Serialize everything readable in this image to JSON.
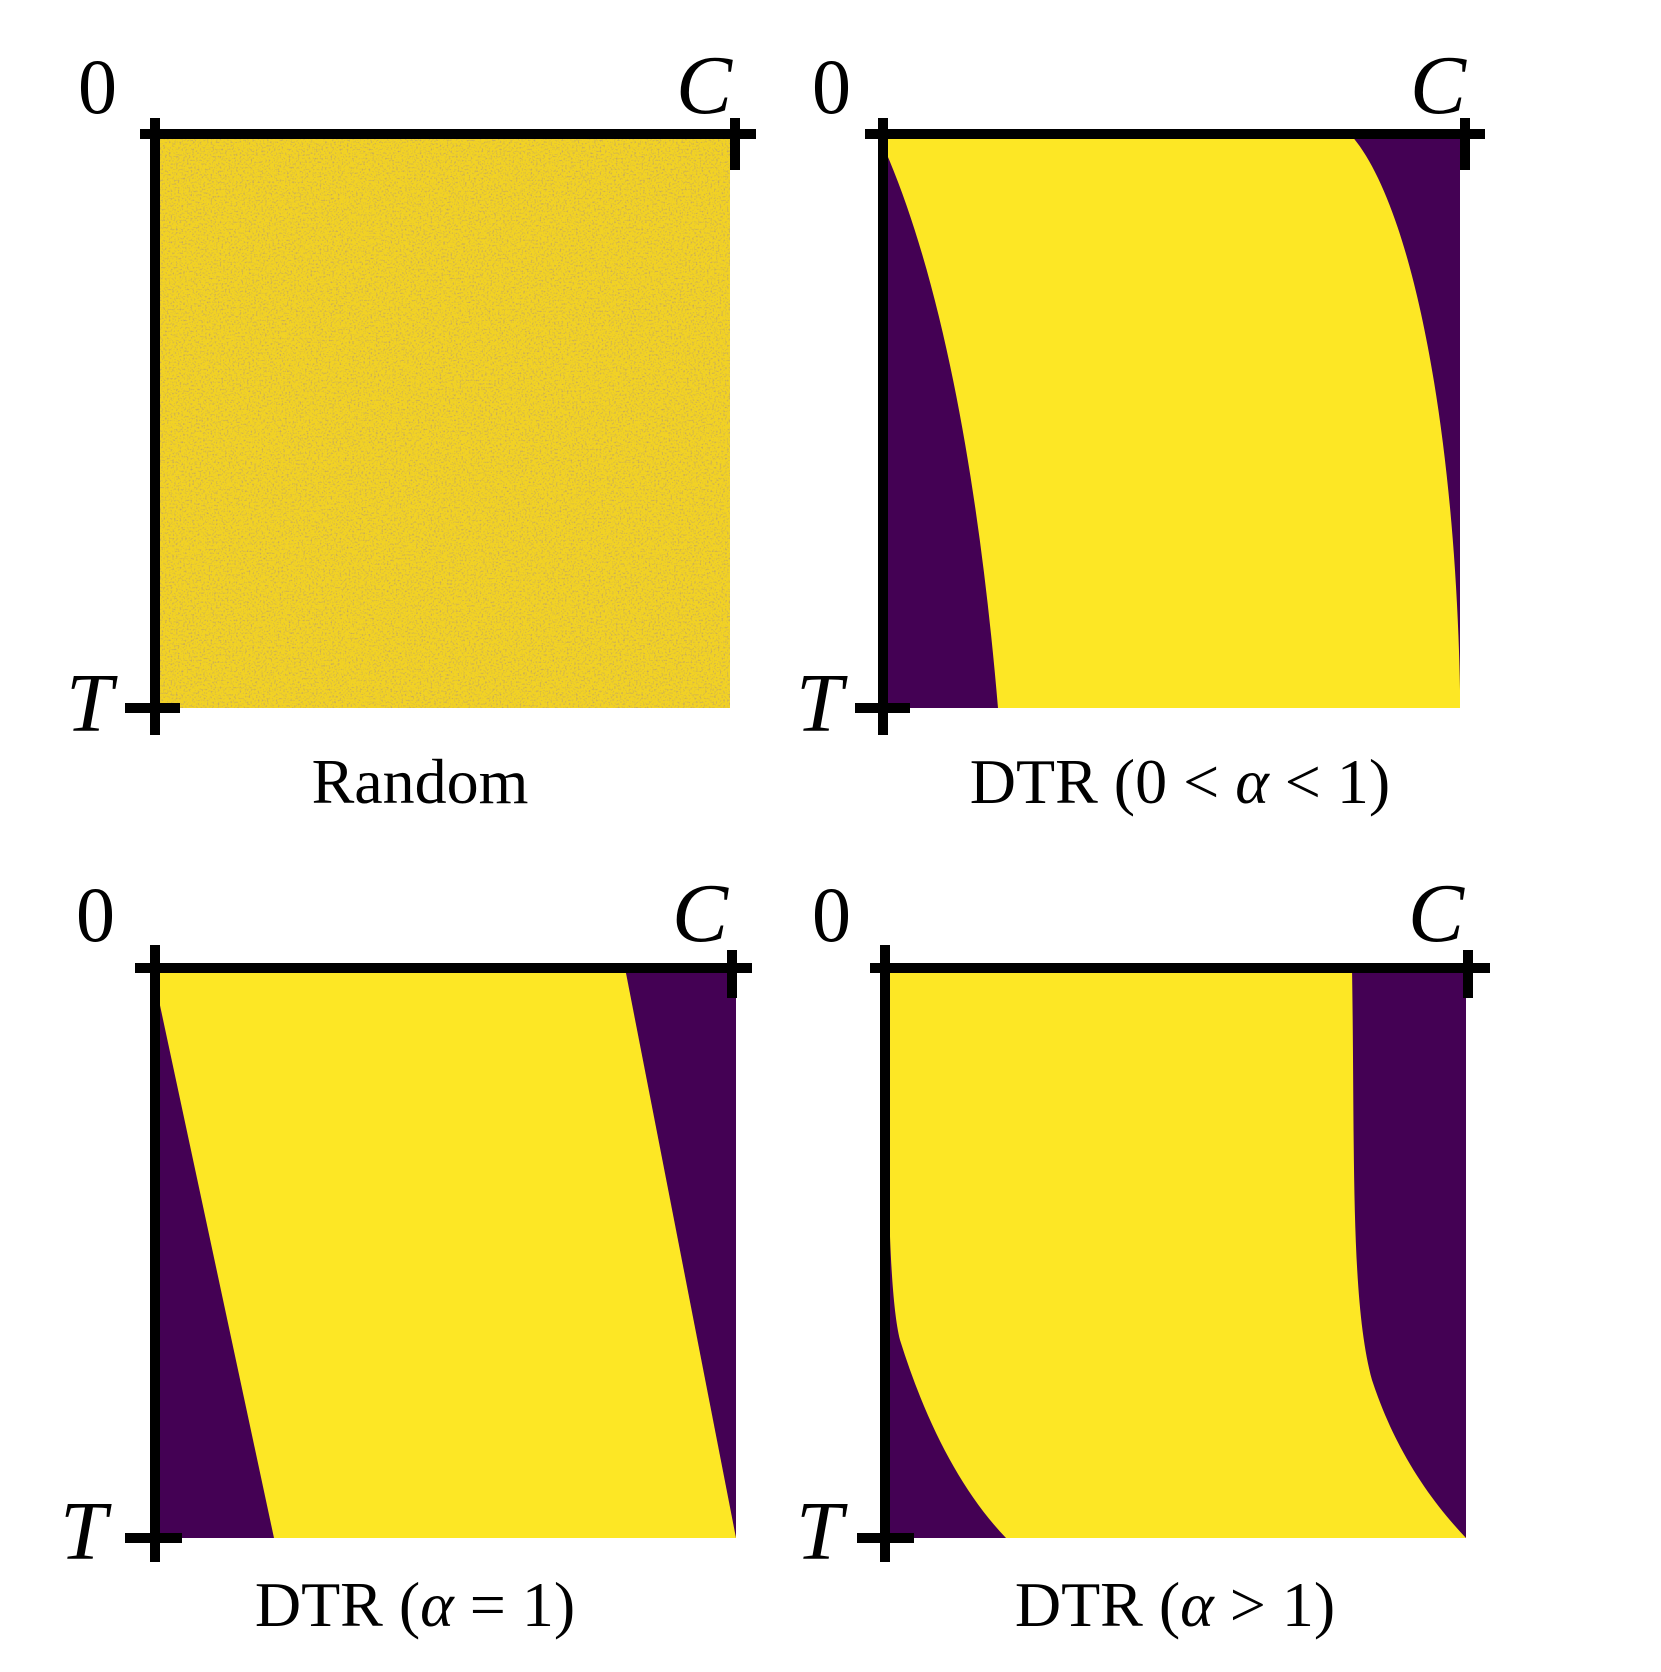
{
  "colors": {
    "fill": "#fde725",
    "background_region": "#440154",
    "axis": "#000000"
  },
  "axis_labels": {
    "origin": "0",
    "x_end": "C",
    "y_end": "T"
  },
  "panels": [
    {
      "id": "random",
      "caption": "Random",
      "pattern": "noise"
    },
    {
      "id": "dtr-alpha-between",
      "caption_prefix": "DTR (0 < ",
      "caption_symbol": "α",
      "caption_suffix": " < 1)",
      "pattern": "concave"
    },
    {
      "id": "dtr-alpha-one",
      "caption_prefix": "DTR (",
      "caption_symbol": "α",
      "caption_suffix": " = 1)",
      "pattern": "linear"
    },
    {
      "id": "dtr-alpha-greater",
      "caption_prefix": "DTR (",
      "caption_symbol": "α",
      "caption_suffix": " > 1)",
      "pattern": "convex"
    }
  ]
}
